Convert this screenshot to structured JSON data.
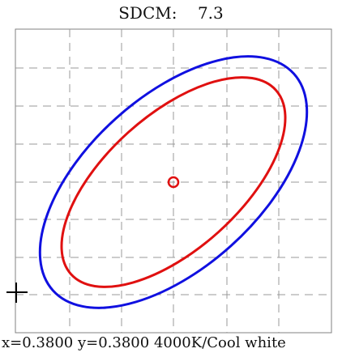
{
  "sdcm": {
    "label": "SDCM:",
    "value": "7.3"
  },
  "readout": {
    "x_label": "x=",
    "x_value": "0.3800",
    "y_label": "y=",
    "y_value": "0.3800",
    "cct_label": "4000K/Cool white"
  },
  "colors": {
    "outer_ellipse": "#1010e0",
    "inner_ellipse": "#e01010",
    "center_marker": "#e01010",
    "grid": "#999999",
    "frame": "#808080",
    "crosshair": "#000000"
  },
  "markers": {
    "target": "0.3800, 0.3800",
    "crosshair_icon": "plus-crosshair-icon"
  }
}
